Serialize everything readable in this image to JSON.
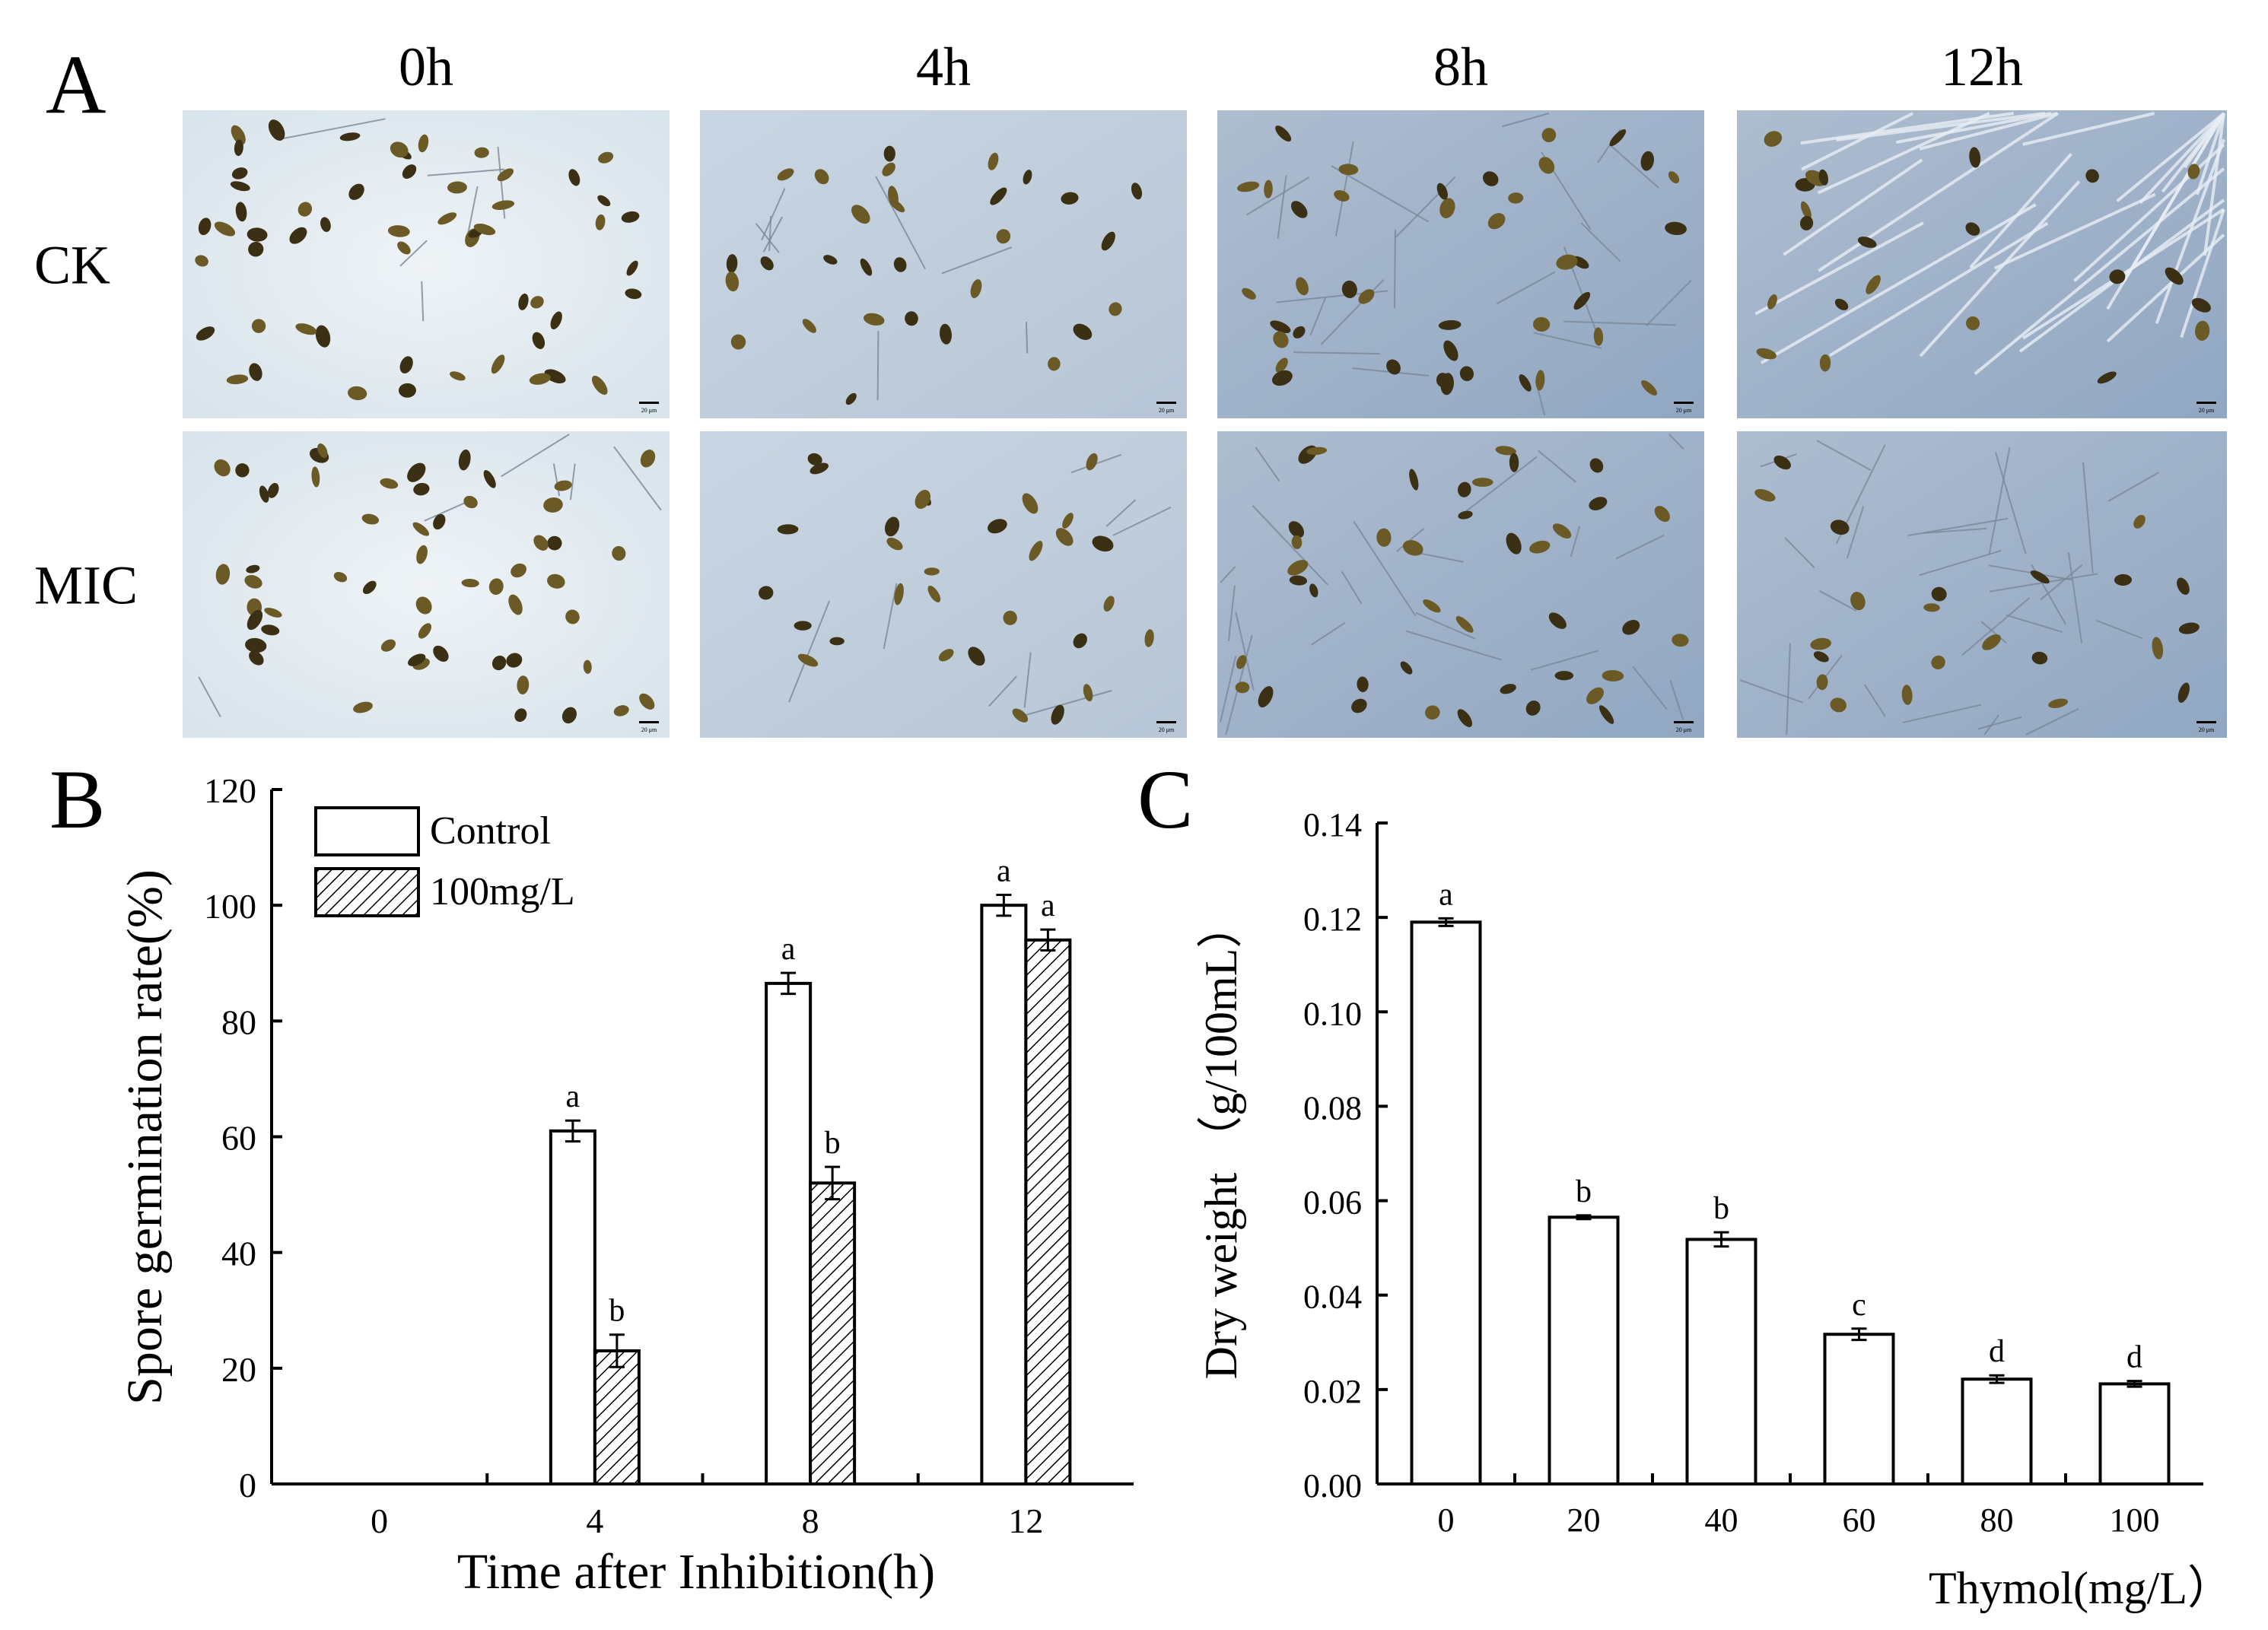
{
  "panels": {
    "a": {
      "letter": "A"
    },
    "b": {
      "letter": "B"
    },
    "c": {
      "letter": "C"
    }
  },
  "micrographs": {
    "times": [
      "0h",
      "4h",
      "8h",
      "12h"
    ],
    "rows": [
      "CK",
      "MIC"
    ],
    "scale_bar_label": "20 μm"
  },
  "colors": {
    "axis": "#000000",
    "bar_control_fill": "#ffffff",
    "bar_treatment_hatch": "#000000",
    "micrograph_light": "#dfe8f0",
    "micrograph_blue": "#9fb4cc"
  },
  "chart_data": [
    {
      "id": "B",
      "type": "bar",
      "categories": [
        "0",
        "4",
        "8",
        "12"
      ],
      "xlabel": "Time after Inhibition(h)",
      "ylabel": "Spore germination rate(%)",
      "ylim": [
        0,
        120
      ],
      "yticks": [
        0,
        20,
        40,
        60,
        80,
        100,
        120
      ],
      "legend_position": "top-left",
      "series": [
        {
          "name": "Control",
          "pattern": "open",
          "values": [
            0,
            61,
            86.5,
            100
          ],
          "errors": [
            0,
            1.8,
            1.8,
            1.8
          ],
          "letters": [
            "",
            "a",
            "a",
            "a"
          ]
        },
        {
          "name": "100mg/L",
          "pattern": "hatched",
          "values": [
            0,
            23,
            52,
            94
          ],
          "errors": [
            0,
            2.8,
            2.8,
            1.8
          ],
          "letters": [
            "",
            "b",
            "b",
            "a"
          ]
        }
      ]
    },
    {
      "id": "C",
      "type": "bar",
      "categories": [
        "0",
        "20",
        "40",
        "60",
        "80",
        "100"
      ],
      "xlabel": "Thymol(mg/L）",
      "ylabel": "Dry weight （g/100mL）",
      "ylim": [
        0,
        0.14
      ],
      "yticks": [
        "0.00",
        "0.02",
        "0.04",
        "0.06",
        "0.08",
        "0.10",
        "0.12",
        "0.14"
      ],
      "values": [
        0.119,
        0.0565,
        0.0518,
        0.0317,
        0.0222,
        0.0212
      ],
      "errors": [
        0.0008,
        0.0004,
        0.0015,
        0.0012,
        0.0008,
        0.0006
      ],
      "letters": [
        "a",
        "b",
        "b",
        "c",
        "d",
        "d"
      ]
    }
  ]
}
